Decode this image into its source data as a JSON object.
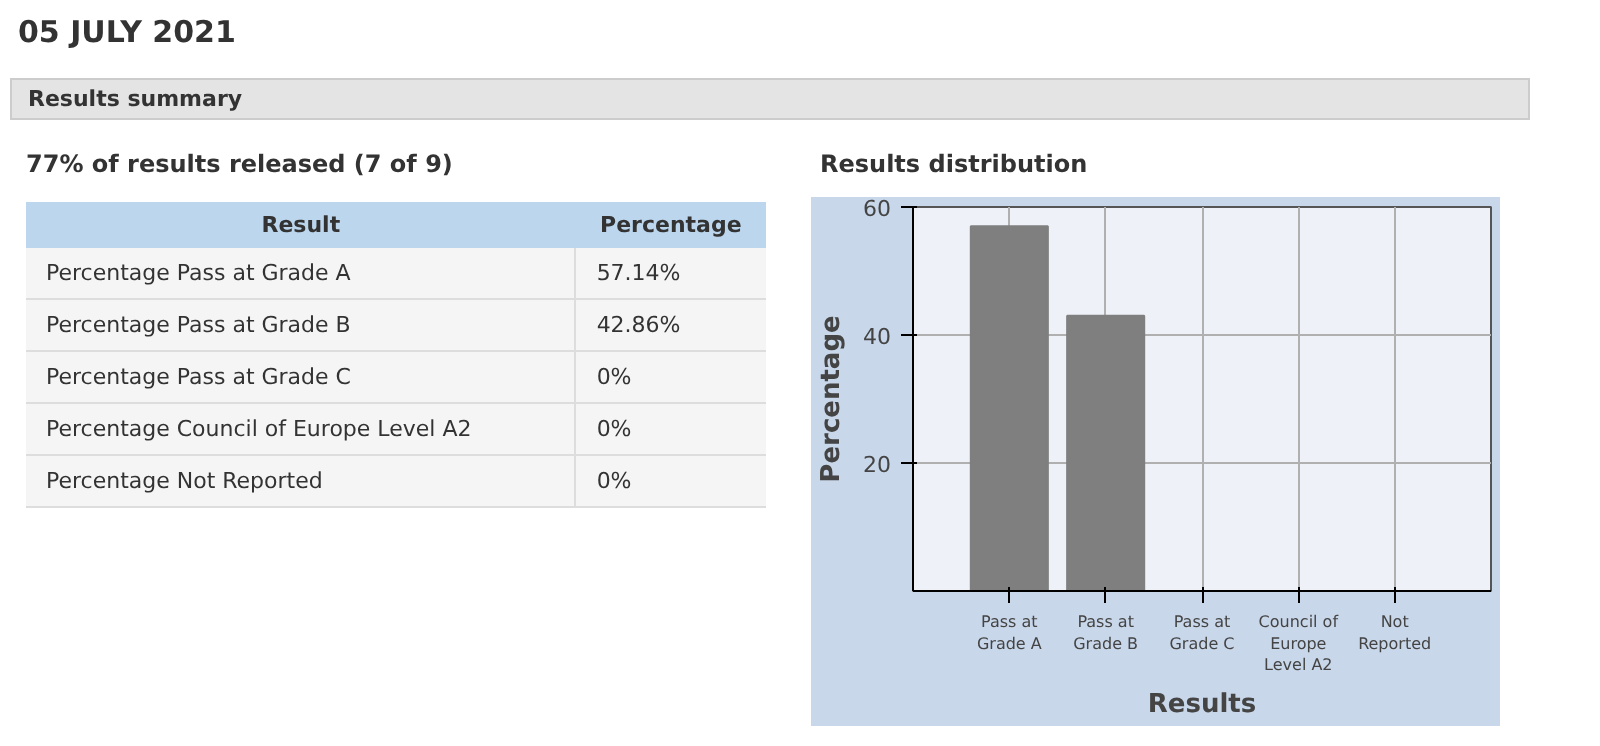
{
  "chart_data": {
    "type": "bar",
    "title": "05 JULY 2021",
    "subtitle": "Results summary",
    "annotations": [
      "77% of results released (7 of 9)",
      "Results distribution",
      "Result",
      "Percentage",
      "Percentage Pass at Grade A",
      "57.14%",
      "Percentage Pass at Grade B",
      "42.86%",
      "Percentage Pass at Grade C",
      "0%",
      "Percentage Council of Europe Level A2",
      "0%",
      "Percentage Not Reported",
      "0%"
    ],
    "categories": [
      "Pass at Grade A",
      "Pass at Grade B",
      "Pass at Grade C",
      "Council of Europe Level A2",
      "Not Reported"
    ],
    "values": [
      57,
      43,
      0,
      0,
      0
    ],
    "color": "#7f7f7f",
    "xlabel": "Results",
    "ylabel": "Percentage",
    "ylim": [
      0,
      60
    ],
    "yticks": [
      20,
      40,
      60
    ],
    "grid": true
  }
}
